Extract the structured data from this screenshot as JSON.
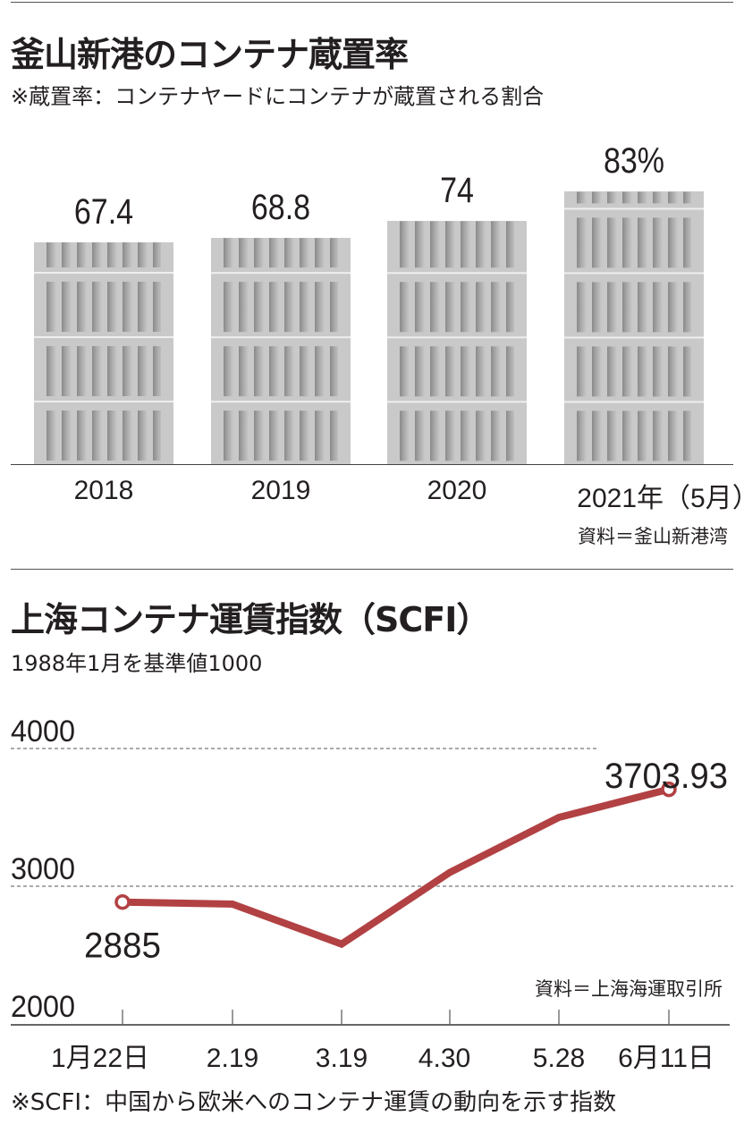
{
  "colors": {
    "line": "#b24143",
    "bar": "#c9c9ca",
    "text": "#231f20"
  },
  "chart_data": [
    {
      "type": "bar",
      "title": "釜山新港のコンテナ蔵置率",
      "subtitle": "※蔵置率：コンテナヤードにコンテナが蔵置される割合",
      "categories": [
        "2018",
        "2019",
        "2020",
        "2021年（5月）"
      ],
      "values": [
        67.4,
        68.8,
        74,
        83
      ],
      "value_labels": [
        "67.4",
        "68.8",
        "74",
        "83%"
      ],
      "source": "資料＝釜山新港湾",
      "ylim": [
        0,
        100
      ]
    },
    {
      "type": "line",
      "title": "上海コンテナ運賃指数（SCFI）",
      "subtitle": "1988年1月を基準値1000",
      "categories": [
        "1月22日",
        "2.19",
        "3.19",
        "4.30",
        "5.28",
        "6月11日"
      ],
      "values": [
        2885,
        2870,
        2580,
        3100,
        3500,
        3703.93
      ],
      "yticks": [
        "4000",
        "3000",
        "2000"
      ],
      "ylim": [
        2000,
        4000
      ],
      "annotations": {
        "first": "2885",
        "last": "3703.93"
      },
      "gridlines": [
        3000,
        4000
      ],
      "source": "資料＝上海海運取引所",
      "footnote": "※SCFI：中国から欧米へのコンテナ運賃の動向を示す指数"
    }
  ]
}
